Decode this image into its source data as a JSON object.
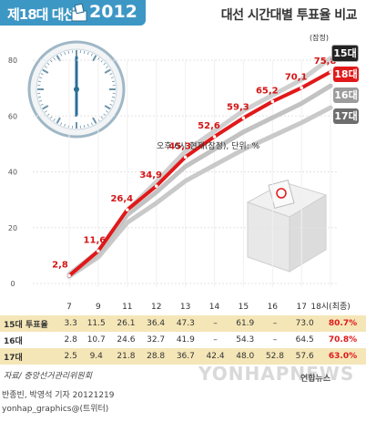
{
  "header": {
    "title": "제18대 대선",
    "year": "2012",
    "chart_title": "대선 시간대별 투표율 비교",
    "subtitle": "오후 6시 현재(잠정), 단위: %"
  },
  "legend": [
    {
      "label": "15대",
      "color": "#222222"
    },
    {
      "label": "18대",
      "color": "#e0191a"
    },
    {
      "label": "16대",
      "color": "#9c9c9c"
    },
    {
      "label": "17대",
      "color": "#6d6d6d"
    }
  ],
  "prelim_note": "(잠정)",
  "chart_data": {
    "type": "line",
    "x": [
      "7",
      "9",
      "11",
      "12",
      "13",
      "14",
      "15",
      "16",
      "17",
      "18시(최종)"
    ],
    "ylim": [
      0,
      80
    ],
    "yticks": [
      "0",
      "20",
      "40",
      "60",
      "80"
    ],
    "series": [
      {
        "name": "15대",
        "values": [
          3.3,
          11.5,
          26.1,
          36.4,
          47.3,
          null,
          61.9,
          null,
          73.0,
          80.7
        ]
      },
      {
        "name": "16대",
        "values": [
          2.8,
          10.7,
          24.6,
          32.7,
          41.9,
          null,
          54.3,
          null,
          64.5,
          70.8
        ]
      },
      {
        "name": "17대",
        "values": [
          2.5,
          9.4,
          21.8,
          28.8,
          36.7,
          42.4,
          48.0,
          52.8,
          57.6,
          63.0
        ]
      },
      {
        "name": "18대",
        "values": [
          2.8,
          11.6,
          26.4,
          34.9,
          45.3,
          52.6,
          59.3,
          65.2,
          70.1,
          75.8
        ]
      }
    ],
    "labels_18": [
      "2,8",
      "11,6",
      "26,4",
      "34,9",
      "45,3",
      "52,6",
      "59,3",
      "65,2",
      "70,1",
      "75,8"
    ]
  },
  "table": {
    "rows": [
      {
        "label": "15대 투표율",
        "cells": [
          "3.3",
          "11.5",
          "26.1",
          "36.4",
          "47.3",
          "–",
          "61.9",
          "–",
          "73.0",
          "80.7%"
        ]
      },
      {
        "label": "16대",
        "cells": [
          "2.8",
          "10.7",
          "24.6",
          "32.7",
          "41.9",
          "–",
          "54.3",
          "–",
          "64.5",
          "70.8%"
        ]
      },
      {
        "label": "17대",
        "cells": [
          "2.5",
          "9.4",
          "21.8",
          "28.8",
          "36.7",
          "42.4",
          "48.0",
          "52.8",
          "57.6",
          "63.0%"
        ]
      }
    ]
  },
  "footer": {
    "source": "자료/ 중앙선거관리위원회",
    "byline": "반종빈, 박영석 기자 20121219",
    "twitter": "yonhap_graphics@(트위터)",
    "logo": "연합뉴스",
    "watermark": "YONHAPNEWS"
  }
}
